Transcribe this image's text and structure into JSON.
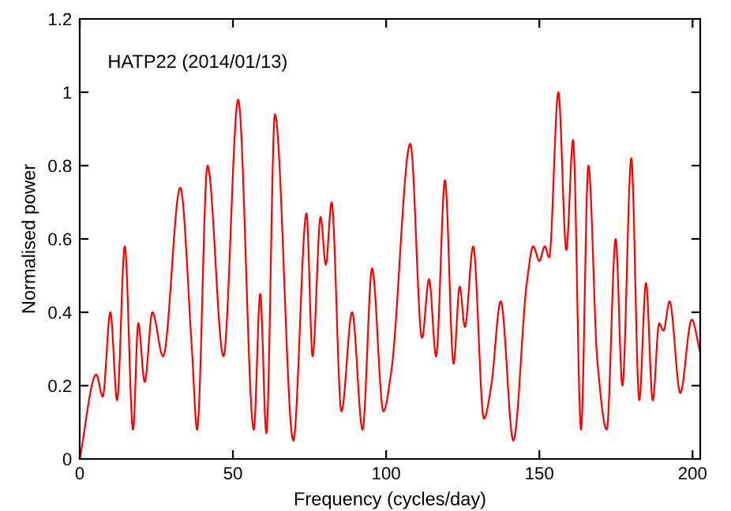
{
  "chart_data": {
    "type": "line",
    "title": "HATP22 (2014/01/13)",
    "xlabel": "Frequency (cycles/day)",
    "ylabel": "Normalised power",
    "x": [
      0,
      5.4,
      7.5,
      10,
      12.2,
      14.7,
      17.4,
      19.1,
      21.2,
      23.7,
      27.2,
      32.8,
      36.6,
      38.3,
      41.7,
      46.9,
      51.7,
      56.8,
      58.9,
      60.9,
      63.7,
      69.7,
      74,
      76,
      78.6,
      80.3,
      82.2,
      85.4,
      88.9,
      92.3,
      95.4,
      99.1,
      101.7,
      107.9,
      111.7,
      114,
      116.3,
      119.2,
      122,
      124,
      125.7,
      128.4,
      131.9,
      134.3,
      137.4,
      141.5,
      145.9,
      148,
      150,
      151.8,
      153.2,
      156.2,
      158.8,
      161,
      163.6,
      166,
      168.9,
      172,
      174.9,
      177.1,
      180,
      182.6,
      184.8,
      187,
      189.1,
      190.5,
      192.5,
      196,
      199.7,
      202.5
    ],
    "series": [
      {
        "color": "#ff0000",
        "values": [
          0,
          0.23,
          0.17,
          0.4,
          0.16,
          0.58,
          0.08,
          0.37,
          0.21,
          0.4,
          0.28,
          0.74,
          0.3,
          0.08,
          0.8,
          0.28,
          0.98,
          0.08,
          0.45,
          0.07,
          0.94,
          0.05,
          0.67,
          0.28,
          0.66,
          0.53,
          0.7,
          0.13,
          0.4,
          0.08,
          0.52,
          0.13,
          0.24,
          0.86,
          0.33,
          0.49,
          0.28,
          0.76,
          0.26,
          0.47,
          0.36,
          0.58,
          0.11,
          0.2,
          0.43,
          0.05,
          0.48,
          0.58,
          0.54,
          0.58,
          0.55,
          1.0,
          0.57,
          0.87,
          0.08,
          0.8,
          0.27,
          0.08,
          0.6,
          0.2,
          0.82,
          0.16,
          0.48,
          0.16,
          0.37,
          0.35,
          0.43,
          0.18,
          0.38,
          0.29
        ]
      }
    ],
    "xlim": [
      0,
      202.5
    ],
    "ylim": [
      0,
      1.2
    ],
    "xticks": [
      0,
      50,
      100,
      150,
      200
    ],
    "yticks": [
      0,
      {
        "value": 0.2,
        "label": "0.2"
      },
      {
        "value": 0.4,
        "label": "0.4"
      },
      {
        "value": 0.6,
        "label": "0.6"
      },
      {
        "value": 0.8,
        "label": "0.8"
      },
      1,
      {
        "value": 1.2,
        "label": "1.2"
      }
    ],
    "grid": false,
    "marker": "none",
    "line_style": "solid"
  }
}
